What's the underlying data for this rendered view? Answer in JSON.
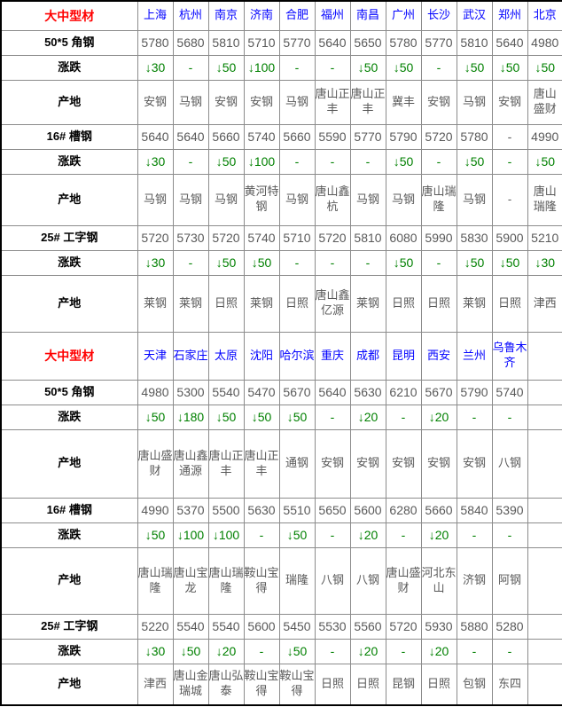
{
  "colors": {
    "title": "#ff0000",
    "city": "#0000ff",
    "price": "#595959",
    "change": "#008000",
    "label": "#000000",
    "border_inner": "#8c8c8c",
    "border_outer": "#000000"
  },
  "row_labels": {
    "change": "涨跌",
    "origin": "产地"
  },
  "sections": [
    {
      "title": "大中型材",
      "cities": [
        "上海",
        "杭州",
        "南京",
        "济南",
        "合肥",
        "福州",
        "南昌",
        "广州",
        "长沙",
        "武汉",
        "郑州",
        "北京"
      ],
      "products": [
        {
          "name": "50*5 角钢",
          "prices": [
            "5780",
            "5680",
            "5810",
            "5710",
            "5770",
            "5640",
            "5650",
            "5780",
            "5770",
            "5810",
            "5640",
            "4980"
          ],
          "changes": [
            "↓30",
            "-",
            "↓50",
            "↓100",
            "-",
            "-",
            "↓50",
            "↓50",
            "-",
            "↓50",
            "↓50",
            "↓50"
          ],
          "origins": [
            "安钢",
            "马钢",
            "安钢",
            "安钢",
            "马钢",
            "唐山正丰",
            "唐山正丰",
            "冀丰",
            "安钢",
            "马钢",
            "安钢",
            "唐山盛财"
          ]
        },
        {
          "name": "16# 槽钢",
          "prices": [
            "5640",
            "5640",
            "5660",
            "5740",
            "5660",
            "5590",
            "5770",
            "5790",
            "5720",
            "5780",
            "-",
            "4990"
          ],
          "changes": [
            "↓30",
            "-",
            "↓50",
            "↓100",
            "-",
            "-",
            "-",
            "↓50",
            "-",
            "↓50",
            "-",
            "↓50"
          ],
          "origins": [
            "马钢",
            "马钢",
            "马钢",
            "黄河特钢",
            "马钢",
            "唐山鑫杭",
            "马钢",
            "马钢",
            "唐山瑞隆",
            "马钢",
            "-",
            "唐山瑞隆"
          ]
        },
        {
          "name": "25# 工字钢",
          "prices": [
            "5720",
            "5730",
            "5720",
            "5740",
            "5710",
            "5720",
            "5810",
            "6080",
            "5990",
            "5830",
            "5900",
            "5210"
          ],
          "changes": [
            "↓30",
            "-",
            "↓50",
            "↓50",
            "-",
            "-",
            "-",
            "↓50",
            "-",
            "↓50",
            "↓50",
            "↓30"
          ],
          "origins": [
            "莱钢",
            "莱钢",
            "日照",
            "莱钢",
            "日照",
            "唐山鑫亿源",
            "莱钢",
            "日照",
            "日照",
            "莱钢",
            "日照",
            "津西"
          ]
        }
      ]
    },
    {
      "title": "大中型材",
      "cities": [
        "天津",
        "石家庄",
        "太原",
        "沈阳",
        "哈尔滨",
        "重庆",
        "成都",
        "昆明",
        "西安",
        "兰州",
        "乌鲁木齐",
        ""
      ],
      "products": [
        {
          "name": "50*5 角钢",
          "prices": [
            "4980",
            "5300",
            "5540",
            "5470",
            "5670",
            "5640",
            "5630",
            "6210",
            "5670",
            "5790",
            "5740",
            ""
          ],
          "changes": [
            "↓50",
            "↓180",
            "↓50",
            "↓50",
            "↓50",
            "-",
            "↓20",
            "-",
            "↓20",
            "-",
            "-",
            ""
          ],
          "origins": [
            "唐山盛财",
            "唐山鑫通源",
            "唐山正丰",
            "唐山正丰",
            "通钢",
            "安钢",
            "安钢",
            "安钢",
            "安钢",
            "安钢",
            "八钢",
            ""
          ]
        },
        {
          "name": "16# 槽钢",
          "prices": [
            "4990",
            "5370",
            "5500",
            "5630",
            "5510",
            "5650",
            "5600",
            "6280",
            "5660",
            "5840",
            "5390",
            ""
          ],
          "changes": [
            "↓50",
            "↓100",
            "↓100",
            "-",
            "↓50",
            "-",
            "↓20",
            "-",
            "↓20",
            "-",
            "-",
            ""
          ],
          "origins": [
            "唐山瑞隆",
            "唐山宝龙",
            "唐山瑞隆",
            "鞍山宝得",
            "瑞隆",
            "八钢",
            "八钢",
            "唐山盛财",
            "河北东山",
            "济钢",
            "阿钢",
            ""
          ]
        },
        {
          "name": "25# 工字钢",
          "prices": [
            "5220",
            "5540",
            "5540",
            "5600",
            "5450",
            "5530",
            "5560",
            "5720",
            "5930",
            "5880",
            "5280",
            ""
          ],
          "changes": [
            "↓30",
            "↓50",
            "↓20",
            "-",
            "↓50",
            "-",
            "↓20",
            "-",
            "↓20",
            "-",
            "-",
            ""
          ],
          "origins": [
            "津西",
            "唐山金瑞城",
            "唐山弘泰",
            "鞍山宝得",
            "鞍山宝得",
            "日照",
            "日照",
            "昆钢",
            "日照",
            "包钢",
            "东四",
            ""
          ]
        }
      ]
    }
  ]
}
